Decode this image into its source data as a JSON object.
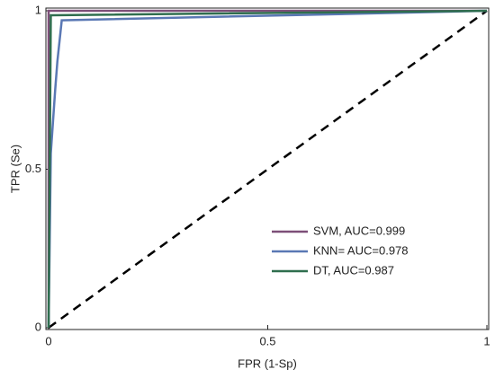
{
  "chart_data": {
    "type": "line",
    "xlabel": "FPR (1-Sp)",
    "ylabel": "TPR (Se)",
    "xlim": [
      0,
      1
    ],
    "ylim": [
      0,
      1
    ],
    "xticks": [
      0,
      0.5,
      1
    ],
    "yticks": [
      0,
      0.5,
      1
    ],
    "legend": "lower right",
    "series": [
      {
        "name": "SVM, AUC=0.999",
        "color": "#7d4f78",
        "x": [
          0,
          0,
          1
        ],
        "values": [
          0,
          1,
          1
        ]
      },
      {
        "name": "KNN= AUC=0.978",
        "color": "#5a78b4",
        "x": [
          0,
          0.005,
          0.01,
          0.015,
          0.02,
          0.03,
          1
        ],
        "values": [
          0,
          0.55,
          0.65,
          0.75,
          0.84,
          0.97,
          1
        ]
      },
      {
        "name": "DT, AUC=0.987",
        "color": "#2f6e4e",
        "x": [
          0,
          0.005,
          1
        ],
        "values": [
          0,
          0.986,
          1
        ]
      }
    ],
    "reference_line": {
      "color": "#000000",
      "x": [
        0,
        1
      ],
      "values": [
        0,
        1
      ]
    }
  }
}
